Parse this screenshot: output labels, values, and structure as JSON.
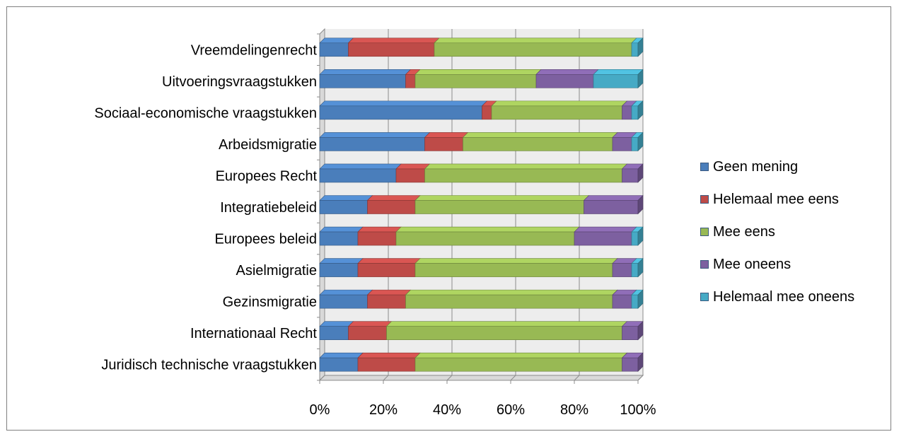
{
  "chart_data": {
    "type": "bar",
    "stacked": "100%",
    "orientation": "horizontal",
    "categories": [
      "Vreemdelingenrecht",
      "Uitvoeringsvraagstukken",
      "Sociaal-economische vraagstukken",
      "Arbeidsmigratie",
      "Europees Recht",
      "Integratiebeleid",
      "Europees beleid",
      "Asielmigratie",
      "Gezinsmigratie",
      "Internationaal Recht",
      "Juridisch technische vraagstukken"
    ],
    "series": [
      {
        "name": "Geen mening",
        "color": "#4a7ebb",
        "values": [
          9,
          27,
          51,
          33,
          24,
          15,
          12,
          12,
          15,
          9,
          12
        ]
      },
      {
        "name": "Helemaal mee eens",
        "color": "#be4b48",
        "values": [
          27,
          3,
          3,
          12,
          9,
          15,
          12,
          18,
          12,
          12,
          18
        ]
      },
      {
        "name": "Mee eens",
        "color": "#98b954",
        "values": [
          62,
          38,
          41,
          47,
          62,
          53,
          56,
          62,
          65,
          74,
          65
        ]
      },
      {
        "name": "Mee oneens",
        "color": "#7d60a0",
        "values": [
          0,
          18,
          3,
          6,
          5,
          17,
          18,
          6,
          6,
          5,
          5
        ]
      },
      {
        "name": "Helemaal mee oneens",
        "color": "#46aac5",
        "values": [
          2,
          14,
          2,
          2,
          0,
          0,
          2,
          2,
          2,
          0,
          0
        ]
      }
    ],
    "x_ticks": [
      "0%",
      "20%",
      "40%",
      "60%",
      "80%",
      "100%"
    ],
    "xlim": [
      0,
      100
    ],
    "grid": true,
    "legend_position": "right"
  }
}
